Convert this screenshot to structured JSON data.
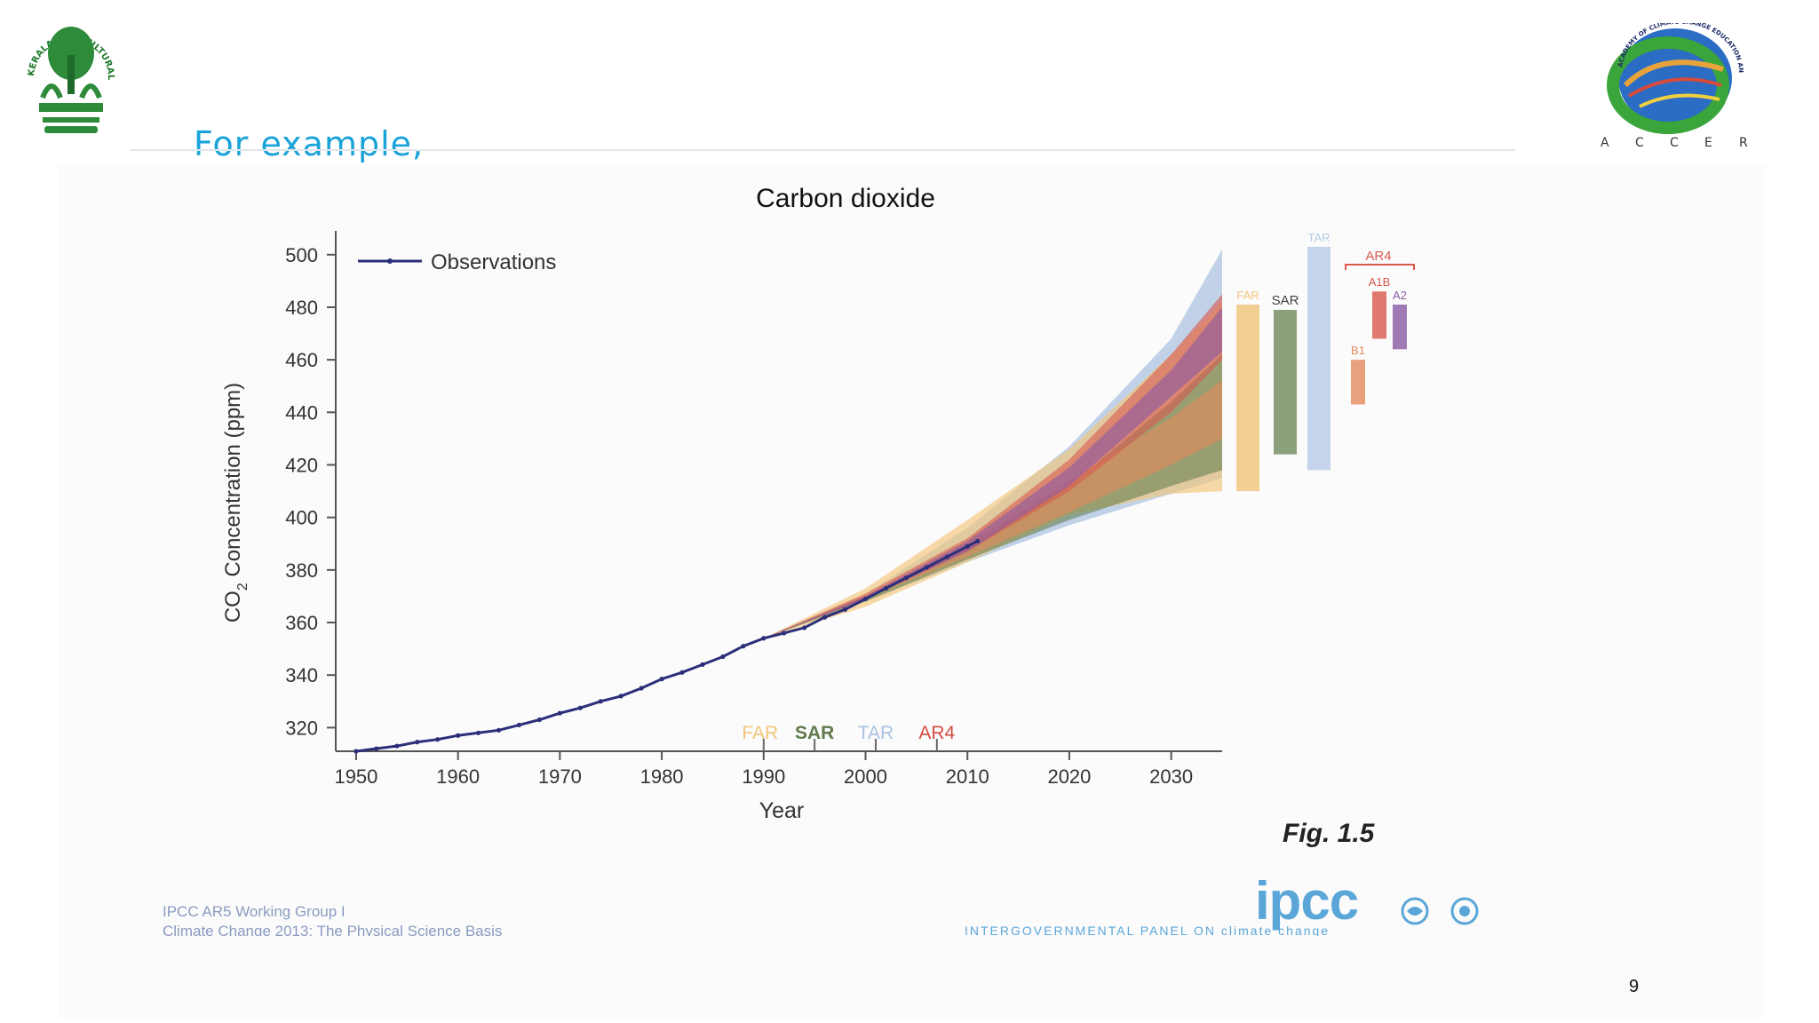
{
  "slide": {
    "heading": "For example,",
    "page_number": "9",
    "figure_caption": "Fig. 1.5",
    "credit_lines": [
      "IPCC AR5 Working Group I",
      "Climate Change 2013: The Physical Science Basis"
    ],
    "ipcc_word": "ipcc",
    "ipcc_subtitle": "INTERGOVERNMENTAL PANEL ON climate change",
    "logo_left_text": "KERALA AGRICULTURAL UNIVERSITY",
    "logo_right_arc_text": "ACADEMY OF CLIMATE CHANGE EDUCATION AND RESEARCH",
    "logo_right_letters": [
      "A",
      "C",
      "C",
      "E",
      "R"
    ]
  },
  "chart_data": {
    "type": "line",
    "title": "Carbon dioxide",
    "xlabel": "Year",
    "ylabel_main": "CO",
    "ylabel_sub": "2",
    "ylabel_rest": " Concentration (ppm)",
    "xlim": [
      1948,
      2035
    ],
    "ylim": [
      311,
      505
    ],
    "x_ticks": [
      1950,
      1960,
      1970,
      1980,
      1990,
      2000,
      2010,
      2020,
      2030
    ],
    "y_ticks": [
      320,
      340,
      360,
      380,
      400,
      420,
      440,
      460,
      480,
      500
    ],
    "legend": "Observations",
    "colors": {
      "observations": "#2b2f7a",
      "FAR": "#f3c47a",
      "SAR": "#5f7a4b",
      "TAR": "#a8c0e0",
      "AR4": "#d24a3f",
      "B1": "#e58a5c",
      "A1B": "#d9594e",
      "A2": "#8a5aa3"
    },
    "observations": {
      "x": [
        1950,
        1952,
        1954,
        1956,
        1958,
        1960,
        1962,
        1964,
        1966,
        1968,
        1970,
        1972,
        1974,
        1976,
        1978,
        1980,
        1982,
        1984,
        1986,
        1988,
        1990,
        1992,
        1994,
        1996,
        1998,
        2000,
        2002,
        2004,
        2006,
        2008,
        2010,
        2011
      ],
      "y": [
        311,
        312,
        313,
        314.5,
        315.5,
        317,
        318,
        319,
        321,
        323,
        325.5,
        327.5,
        330,
        332,
        335,
        338.5,
        341,
        344,
        347,
        351,
        354,
        356,
        358,
        362,
        365,
        369,
        373,
        377,
        381,
        385,
        389,
        391
      ]
    },
    "projection_fans": [
      {
        "name": "TAR",
        "x": [
          1990,
          2000,
          2010,
          2020,
          2030,
          2035
        ],
        "lower": [
          354,
          368,
          383,
          397,
          409,
          415
        ],
        "upper": [
          354,
          371,
          396,
          427,
          468,
          502
        ]
      },
      {
        "name": "FAR",
        "x": [
          1990,
          2000,
          2010,
          2020,
          2030,
          2035
        ],
        "lower": [
          354,
          366,
          383,
          401,
          409,
          410
        ],
        "upper": [
          354,
          373,
          399,
          426,
          462,
          482
        ]
      },
      {
        "name": "SAR",
        "x": [
          1990,
          2000,
          2010,
          2020,
          2030,
          2035
        ],
        "lower": [
          354,
          368,
          384,
          399,
          412,
          418
        ],
        "upper": [
          354,
          370,
          389,
          412,
          444,
          462
        ]
      },
      {
        "name": "B1",
        "x": [
          1990,
          2000,
          2010,
          2020,
          2030,
          2035
        ],
        "lower": [
          354,
          369,
          385,
          402,
          420,
          430
        ],
        "upper": [
          354,
          370,
          390,
          414,
          438,
          452
        ]
      },
      {
        "name": "A1B",
        "x": [
          1990,
          2000,
          2010,
          2020,
          2030,
          2035
        ],
        "lower": [
          354,
          369,
          387,
          410,
          440,
          460
        ],
        "upper": [
          354,
          371,
          392,
          422,
          462,
          485
        ]
      },
      {
        "name": "A2",
        "x": [
          1990,
          2000,
          2010,
          2020,
          2030,
          2035
        ],
        "lower": [
          354,
          369,
          387,
          412,
          446,
          463
        ],
        "upper": [
          354,
          370,
          391,
          419,
          456,
          480
        ]
      }
    ],
    "release_markers": [
      {
        "label": "FAR",
        "year": 1990,
        "color": "#f3c47a"
      },
      {
        "label": "SAR",
        "year": 1995,
        "color": "#5f7a4b"
      },
      {
        "label": "TAR",
        "year": 2001,
        "color": "#a8c0e0"
      },
      {
        "label": "AR4",
        "year": 2007,
        "color": "#d24a3f"
      }
    ],
    "range_bars_2035": [
      {
        "label": "FAR",
        "low": 410,
        "high": 481,
        "color": "#f3c47a"
      },
      {
        "label": "SAR",
        "low": 424,
        "high": 479,
        "color": "#6f8a5b"
      },
      {
        "label": "TAR",
        "low": 418,
        "high": 503,
        "color": "#b7cbe6"
      },
      {
        "label": "B1",
        "low": 443,
        "high": 460,
        "color": "#e58a5c"
      },
      {
        "label": "A1B",
        "low": 468,
        "high": 486,
        "color": "#d9594e"
      },
      {
        "label": "A2",
        "low": 464,
        "high": 481,
        "color": "#8a5aa3"
      }
    ],
    "ar4_group_label": "AR4"
  }
}
